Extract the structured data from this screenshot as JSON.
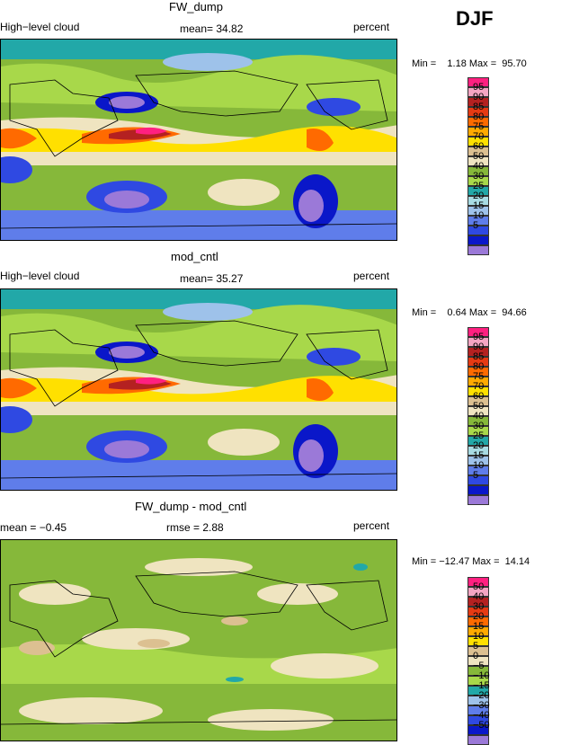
{
  "season": "DJF",
  "colors": {
    "abs": [
      "#9b79d8",
      "#0a17c9",
      "#2f49e2",
      "#5f7dea",
      "#9ec2ea",
      "#a8dbe3",
      "#22a8a8",
      "#a8d84a",
      "#86b83a",
      "#efe4c0",
      "#dcc091",
      "#ffe000",
      "#ffaa00",
      "#ff6a00",
      "#e63a13",
      "#b42121",
      "#f4a5c3",
      "#ff2080"
    ],
    "diff": [
      "#9b79d8",
      "#0a17c9",
      "#2f49e2",
      "#5f7dea",
      "#9ec2ea",
      "#22a8a8",
      "#a8d84a",
      "#86b83a",
      "#efe4c0",
      "#dcc091",
      "#ffe000",
      "#ffaa00",
      "#ff6a00",
      "#e63a13",
      "#b42121",
      "#f4a5c3",
      "#ff2080"
    ]
  },
  "panels": [
    {
      "title": "FW_dump",
      "left_label": "High−level cloud",
      "stat": "mean=  34.82",
      "units": "percent",
      "minmax": "Min =    1.18 Max =  95.70",
      "legend": [
        "95",
        "90",
        "85",
        "80",
        "75",
        "70",
        "60",
        "50",
        "40",
        "30",
        "25",
        "20",
        "15",
        "10",
        "5"
      ]
    },
    {
      "title": "mod_cntl",
      "left_label": "High−level cloud",
      "stat": "mean=  35.27",
      "units": "percent",
      "minmax": "Min =    0.64 Max =  94.66",
      "legend": [
        "95",
        "90",
        "85",
        "80",
        "75",
        "70",
        "60",
        "50",
        "40",
        "30",
        "25",
        "20",
        "15",
        "10",
        "5"
      ]
    },
    {
      "title": "FW_dump - mod_cntl",
      "left_label": "mean =  −0.45",
      "stat": "rmse =    2.88",
      "units": "percent",
      "minmax": "Min = −12.47 Max =  14.14",
      "legend": [
        "50",
        "40",
        "30",
        "20",
        "15",
        "10",
        "5",
        "0",
        "−5",
        "−10",
        "−15",
        "−20",
        "−30",
        "−40",
        "−50"
      ]
    }
  ],
  "chart_data": [
    {
      "type": "heatmap",
      "title": "FW_dump",
      "variable": "High−level cloud",
      "units": "percent",
      "season": "DJF",
      "mean": 34.82,
      "min": 1.18,
      "max": 95.7,
      "levels": [
        5,
        10,
        15,
        20,
        25,
        30,
        40,
        50,
        60,
        70,
        75,
        80,
        85,
        90,
        95
      ]
    },
    {
      "type": "heatmap",
      "title": "mod_cntl",
      "variable": "High−level cloud",
      "units": "percent",
      "season": "DJF",
      "mean": 35.27,
      "min": 0.64,
      "max": 94.66,
      "levels": [
        5,
        10,
        15,
        20,
        25,
        30,
        40,
        50,
        60,
        70,
        75,
        80,
        85,
        90,
        95
      ]
    },
    {
      "type": "heatmap",
      "title": "FW_dump - mod_cntl",
      "units": "percent",
      "season": "DJF",
      "mean": -0.45,
      "rmse": 2.88,
      "min": -12.47,
      "max": 14.14,
      "levels": [
        -50,
        -40,
        -30,
        -20,
        -15,
        -10,
        -5,
        0,
        5,
        10,
        15,
        20,
        30,
        40,
        50
      ]
    }
  ]
}
